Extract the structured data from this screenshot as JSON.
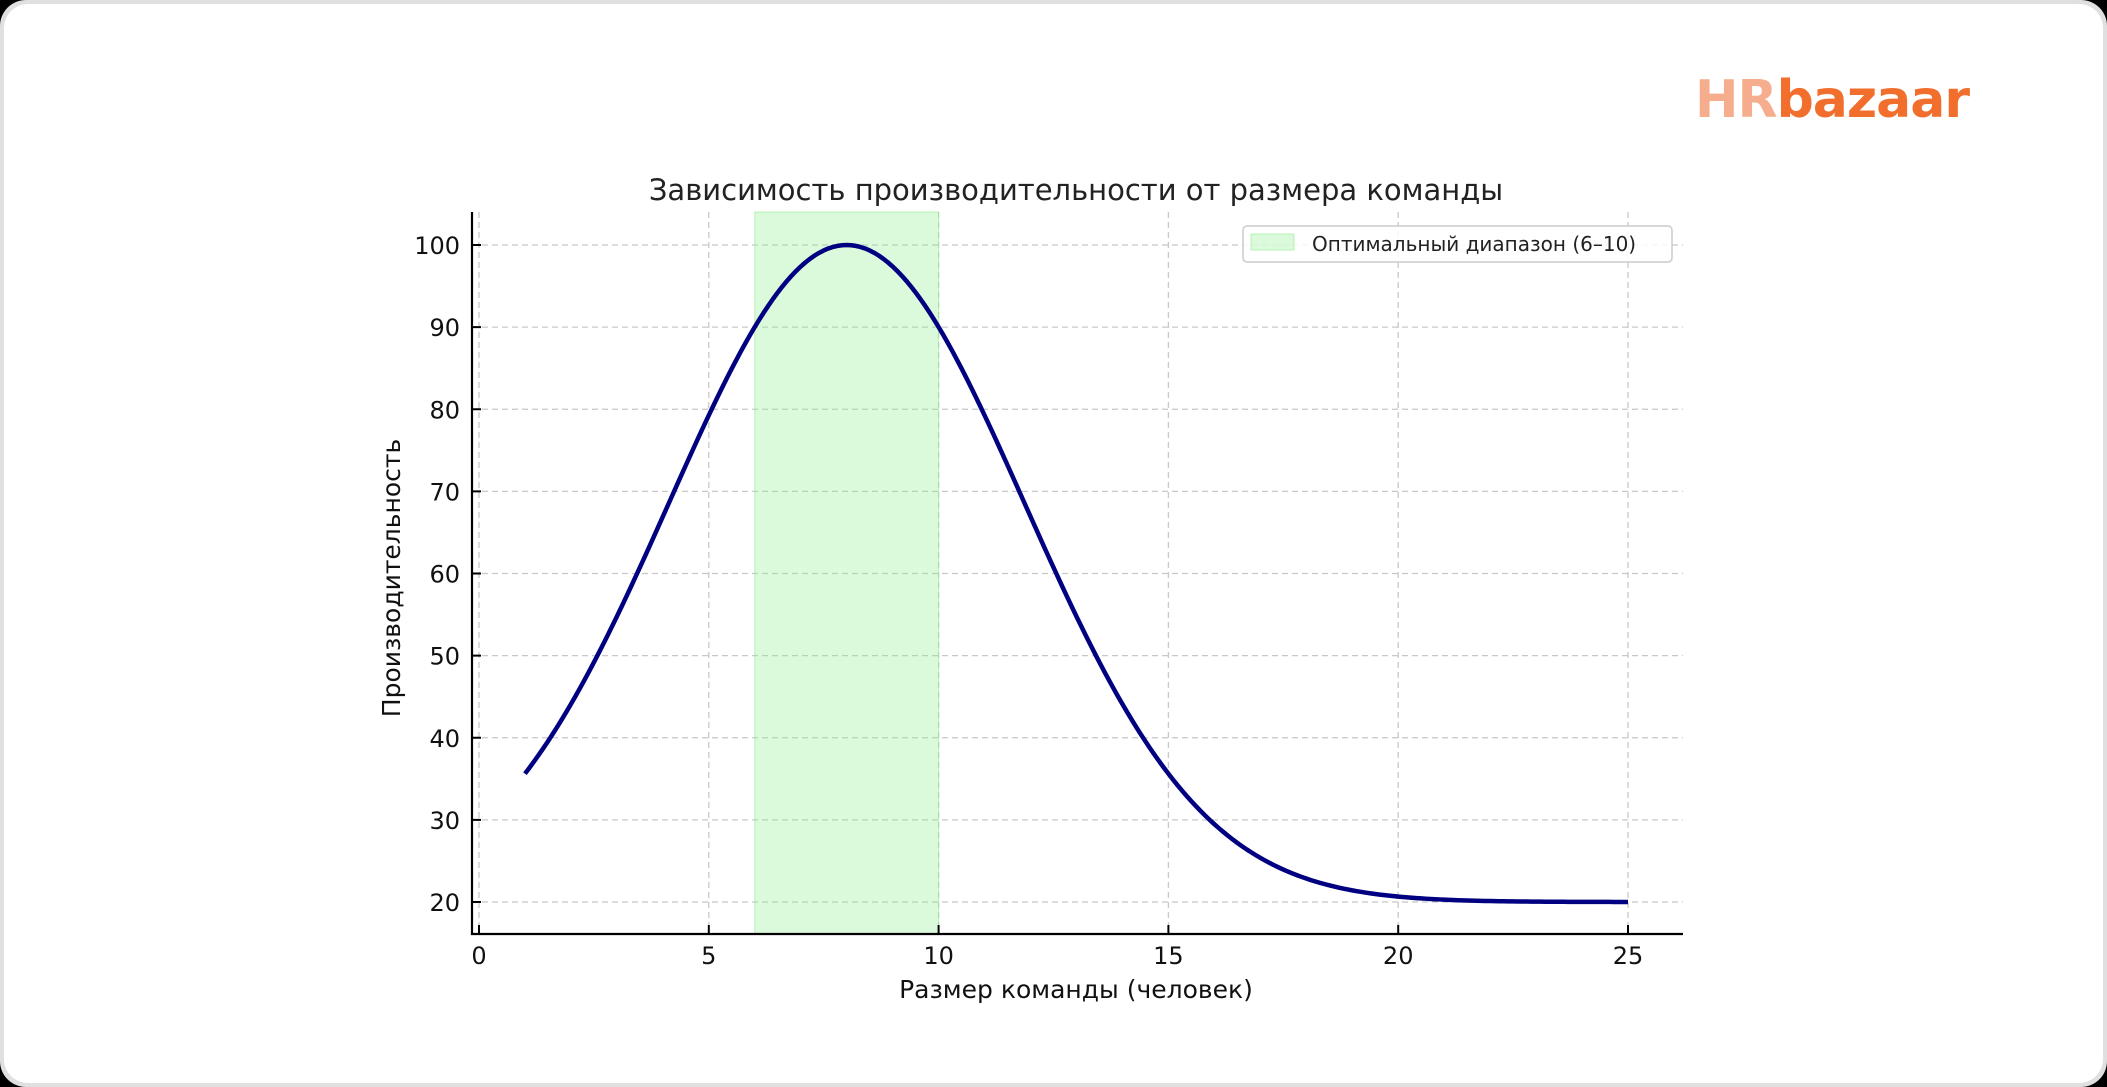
{
  "brand": {
    "logo_part1": "HR",
    "logo_part2": "bazaar",
    "color_part1": "#f6ad8d",
    "color_part2": "#f26e2c"
  },
  "chart_data": {
    "type": "line",
    "title": "Зависимость производительности от размера команды",
    "xlabel": "Размер команды (человек)",
    "ylabel": "Производительность",
    "xlim": [
      -0.35,
      26.2
    ],
    "ylim": [
      16,
      104
    ],
    "xticks": [
      0,
      5,
      10,
      15,
      20,
      25
    ],
    "yticks": [
      20,
      30,
      40,
      50,
      60,
      70,
      80,
      90,
      100
    ],
    "grid": true,
    "legend_position": "upper right",
    "legend": [
      "Оптимальный диапазон (6–10)"
    ],
    "shaded_region": {
      "label": "Оптимальный диапазон (6–10)",
      "x_start": 6,
      "x_end": 10,
      "color": "#90ee90",
      "alpha": 0.3
    },
    "series": [
      {
        "name": "Производительность",
        "color": "#000080",
        "x": [
          1,
          2,
          3,
          4,
          5,
          6,
          7,
          8,
          9,
          10,
          11,
          12,
          13,
          14,
          15,
          16,
          17,
          18,
          19,
          20,
          21,
          22,
          23,
          24,
          25
        ],
        "values": [
          35.6,
          46.1,
          58.4,
          71.1,
          82.4,
          90.8,
          97.4,
          100.0,
          97.4,
          90.8,
          80.8,
          69.4,
          57.6,
          46.8,
          37.8,
          31.0,
          26.4,
          23.3,
          21.6,
          20.7,
          20.3,
          20.1,
          20.0,
          20.0,
          20.0
        ]
      }
    ]
  }
}
